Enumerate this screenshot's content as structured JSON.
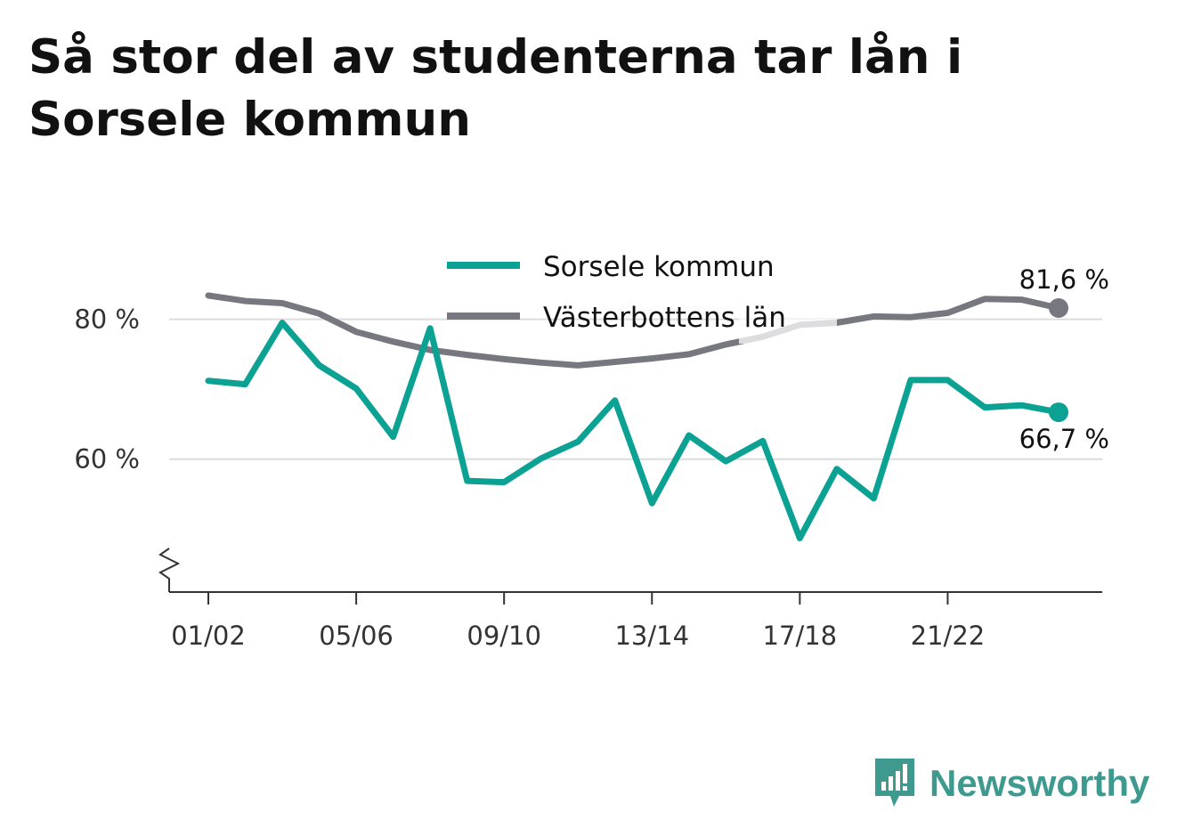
{
  "header": {
    "title": "Så stor del av studenterna tar lån i Sorsele kommun"
  },
  "brand": {
    "name": "Newsworthy",
    "icon": "newsworthy-logo-icon",
    "color": "#3e9a8f"
  },
  "chart_data": {
    "type": "line",
    "title": "Så stor del av studenterna tar lån i Sorsele kommun",
    "xlabel": "",
    "ylabel": "",
    "ylim": [
      41,
      90
    ],
    "yticks": [
      {
        "value": 60,
        "label": "60 %"
      },
      {
        "value": 80,
        "label": "80 %"
      }
    ],
    "x": [
      "01/02",
      "02/03",
      "03/04",
      "04/05",
      "05/06",
      "06/07",
      "07/08",
      "08/09",
      "09/10",
      "10/11",
      "11/12",
      "12/13",
      "13/14",
      "14/15",
      "15/16",
      "16/17",
      "17/18",
      "18/19",
      "19/20",
      "20/21",
      "21/22",
      "22/23",
      "23/24",
      "24/25"
    ],
    "xticks": [
      {
        "index": 0,
        "label": "01/02"
      },
      {
        "index": 4,
        "label": "05/06"
      },
      {
        "index": 8,
        "label": "09/10"
      },
      {
        "index": 12,
        "label": "13/14"
      },
      {
        "index": 16,
        "label": "17/18"
      },
      {
        "index": 20,
        "label": "21/22"
      }
    ],
    "series": [
      {
        "name": "Sorsele kommun",
        "color": "#0ba293",
        "values": [
          71.2,
          70.7,
          79.5,
          73.4,
          70.1,
          63.2,
          78.7,
          56.9,
          56.7,
          60.1,
          62.5,
          68.4,
          53.7,
          63.4,
          59.7,
          62.6,
          48.7,
          58.6,
          54.4,
          71.3,
          71.3,
          67.4,
          67.7,
          66.7
        ],
        "end_label": "66,7 %"
      },
      {
        "name": "Västerbottens län",
        "color": "#777780",
        "values": [
          83.4,
          82.6,
          82.3,
          80.8,
          78.2,
          76.8,
          75.6,
          74.9,
          74.3,
          73.8,
          73.4,
          73.9,
          74.4,
          75.0,
          76.4,
          77.5,
          79.2,
          79.5,
          80.4,
          80.3,
          80.9,
          82.9,
          82.8,
          81.6
        ],
        "end_label": "81,6 %"
      }
    ],
    "legend_position": "top",
    "grid": true
  }
}
